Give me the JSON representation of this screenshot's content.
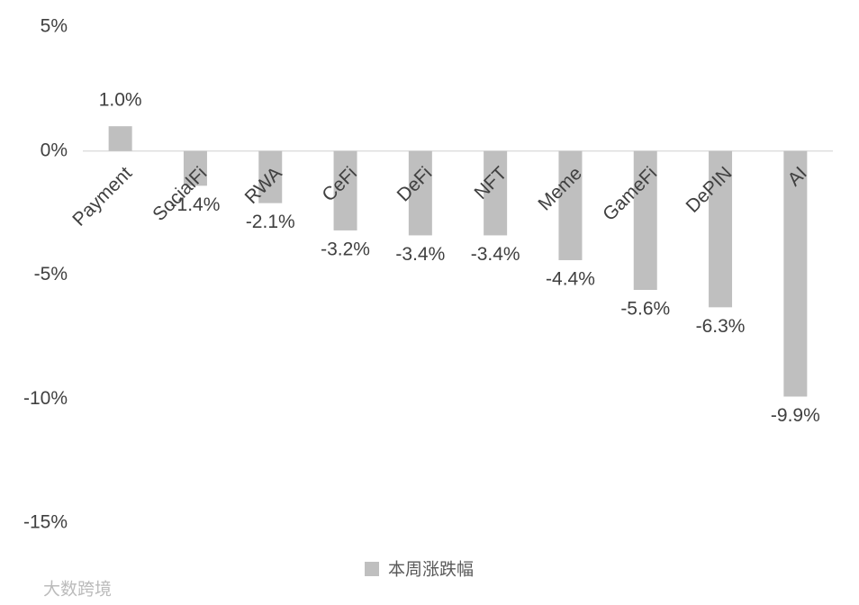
{
  "chart_data": {
    "type": "bar",
    "categories": [
      "Payment",
      "SocialFi",
      "RWA",
      "CeFi",
      "DeFi",
      "NFT",
      "Meme",
      "GameFi",
      "DePIN",
      "AI"
    ],
    "series": [
      {
        "name": "本周涨跌幅",
        "color": "#bfbfbf",
        "values": [
          1.0,
          -1.4,
          -2.1,
          -3.2,
          -3.4,
          -3.4,
          -4.4,
          -5.6,
          -6.3,
          -9.9
        ],
        "value_labels": [
          "1.0%",
          "-1.4%",
          "-2.1%",
          "-3.2%",
          "-3.4%",
          "-3.4%",
          "-4.4%",
          "-5.6%",
          "-6.3%",
          "-9.9%"
        ]
      }
    ],
    "ylim": [
      -15,
      5
    ],
    "yticks": [
      {
        "value": 5,
        "label": "5%"
      },
      {
        "value": 0,
        "label": "0%"
      },
      {
        "value": -5,
        "label": "-5%"
      },
      {
        "value": -10,
        "label": "-10%"
      },
      {
        "value": -15,
        "label": "-15%"
      }
    ],
    "grid": false,
    "legend": "bottom",
    "watermark": "大数跨境"
  }
}
